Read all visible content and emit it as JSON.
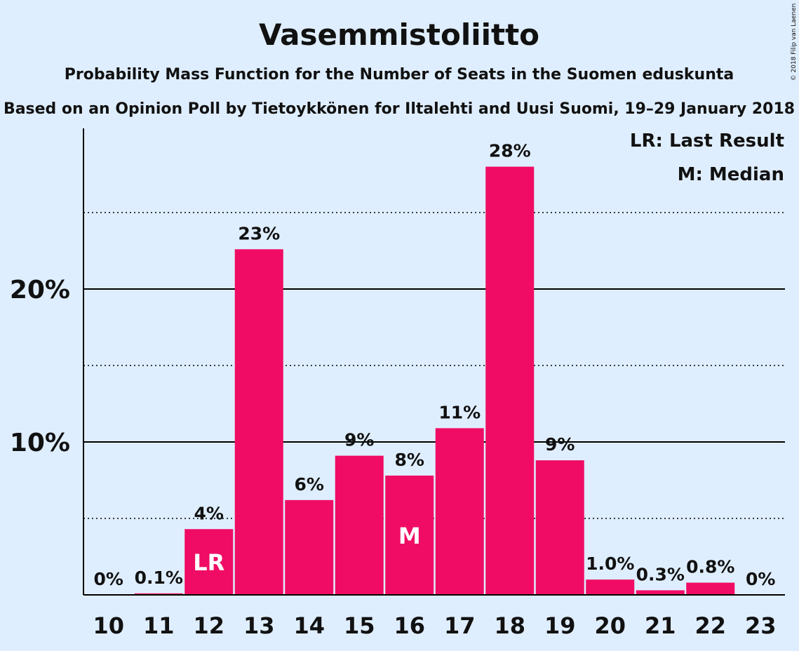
{
  "chart_data": {
    "type": "bar",
    "title": "Vasemmistoliitto",
    "subtitle": "Probability Mass Function for the Number of Seats in the Suomen eduskunta",
    "subtitle2": "Based on an Opinion Poll by Tietoykkönen for Iltalehti and Uusi Suomi, 19–29 January 2018",
    "copyright": "© 2018 Filip van Laenen",
    "categories": [
      "10",
      "11",
      "12",
      "13",
      "14",
      "15",
      "16",
      "17",
      "18",
      "19",
      "20",
      "21",
      "22",
      "23"
    ],
    "values": [
      0,
      0.1,
      4.3,
      22.6,
      6.2,
      9.1,
      7.8,
      10.9,
      28,
      8.8,
      1.0,
      0.3,
      0.8,
      0
    ],
    "value_labels": [
      "0%",
      "0.1%",
      "4%",
      "23%",
      "6%",
      "9%",
      "8%",
      "11%",
      "28%",
      "9%",
      "1.0%",
      "0.3%",
      "0.8%",
      "0%"
    ],
    "bar_markers": {
      "12": "LR",
      "16": "M"
    },
    "yticks": [
      10,
      20
    ],
    "ytick_labels": [
      "10%",
      "20%"
    ],
    "minor_gridlines": [
      5,
      15,
      25
    ],
    "ylim": [
      0,
      30
    ],
    "legend": {
      "position": "top-right",
      "entries": [
        "LR: Last Result",
        "M: Median"
      ]
    },
    "colors": {
      "bar": "#f00c64",
      "background": "#dfeeff",
      "text": "#111111",
      "grid": "#000000",
      "marker_text": "#ffffff"
    }
  }
}
